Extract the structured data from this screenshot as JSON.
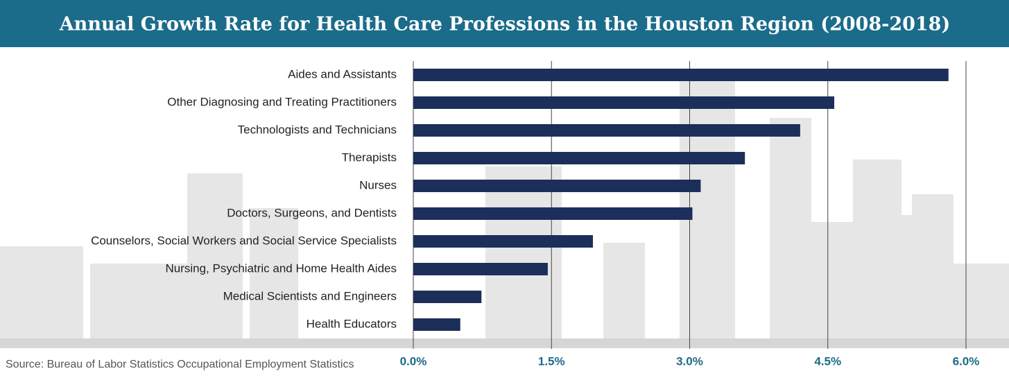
{
  "chart_data": {
    "type": "hbar",
    "title": "Annual Growth Rate for Health Care Professions in the Houston Region (2008-2018)",
    "source": "Source: Bureau of Labor Statistics Occupational Employment Statistics",
    "categories": [
      "Aides and Assistants",
      "Other Diagnosing and Treating Practitioners",
      "Technologists and Technicians",
      "Therapists",
      "Nurses",
      "Doctors, Surgeons, and Dentists",
      "Counselors, Social Workers and Social Service Specialists",
      "Nursing, Psychiatric and Home Health Aides",
      "Medical Scientists and Engineers",
      "Health Educators"
    ],
    "values": [
      5.81,
      4.57,
      4.2,
      3.6,
      3.12,
      3.03,
      1.95,
      1.46,
      0.74,
      0.51
    ],
    "color": "#1b2f5a",
    "xlim": [
      0,
      6.2
    ],
    "xticks": [
      {
        "value": 0,
        "label": "0.0%"
      },
      {
        "value": 1.5,
        "label": "1.5%"
      },
      {
        "value": 3,
        "label": "3.0%"
      },
      {
        "value": 4.5,
        "label": "4.5%"
      },
      {
        "value": 6,
        "label": "6.0%"
      }
    ],
    "grid": true
  }
}
